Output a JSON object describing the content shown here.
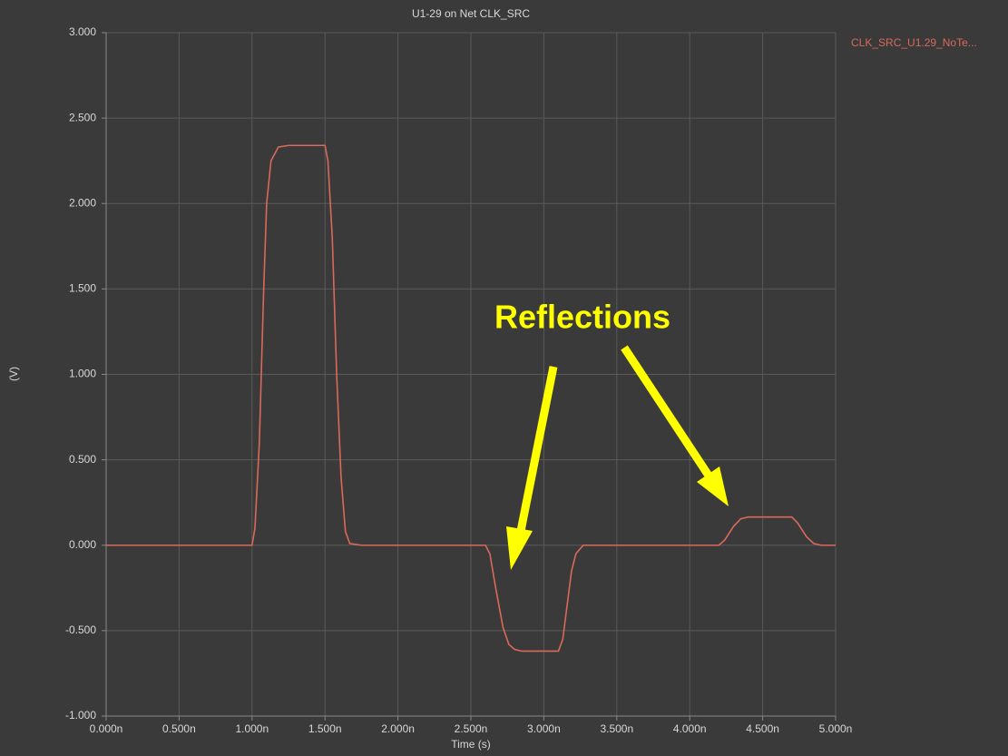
{
  "chart_data": {
    "type": "line",
    "title": "U1-29 on Net CLK_SRC",
    "x_label": "Time (s)",
    "y_label": "(V)",
    "xlim": [
      0,
      5
    ],
    "ylim": [
      -1,
      3
    ],
    "xticks": [
      {
        "value": 0,
        "label": "0.000n"
      },
      {
        "value": 0.5,
        "label": "0.500n"
      },
      {
        "value": 1,
        "label": "1.000n"
      },
      {
        "value": 1.5,
        "label": "1.500n"
      },
      {
        "value": 2,
        "label": "2.000n"
      },
      {
        "value": 2.5,
        "label": "2.500n"
      },
      {
        "value": 3,
        "label": "3.000n"
      },
      {
        "value": 3.5,
        "label": "3.500n"
      },
      {
        "value": 4,
        "label": "4.000n"
      },
      {
        "value": 4.5,
        "label": "4.500n"
      },
      {
        "value": 5,
        "label": "5.000n"
      }
    ],
    "yticks": [
      {
        "value": 3,
        "label": "3.000"
      },
      {
        "value": 2.5,
        "label": "2.500"
      },
      {
        "value": 2,
        "label": "2.000"
      },
      {
        "value": 1.5,
        "label": "1.500"
      },
      {
        "value": 1,
        "label": "1.000"
      },
      {
        "value": 0.5,
        "label": "0.500"
      },
      {
        "value": 0,
        "label": "0.000"
      },
      {
        "value": -0.5,
        "label": "-0.500"
      },
      {
        "value": -1,
        "label": "-1.000"
      }
    ],
    "grid": true,
    "legend": "right",
    "annotations": [
      "Reflections"
    ],
    "x": [
      0,
      1.0,
      1.02,
      1.05,
      1.08,
      1.1,
      1.13,
      1.18,
      1.25,
      1.5,
      1.52,
      1.55,
      1.58,
      1.61,
      1.64,
      1.67,
      1.75,
      2.6,
      2.63,
      2.67,
      2.72,
      2.76,
      2.8,
      2.85,
      3.1,
      3.13,
      3.16,
      3.19,
      3.22,
      3.27,
      4.2,
      4.24,
      4.3,
      4.35,
      4.4,
      4.7,
      4.74,
      4.8,
      4.85,
      4.9,
      5.0
    ],
    "series": [
      {
        "name": "CLK_SRC_U1.29_NoTe...",
        "color": "#d9695a",
        "values": [
          0,
          0,
          0.1,
          0.6,
          1.5,
          2.0,
          2.25,
          2.33,
          2.34,
          2.34,
          2.25,
          1.8,
          1.0,
          0.4,
          0.08,
          0.01,
          0,
          0,
          -0.05,
          -0.25,
          -0.48,
          -0.58,
          -0.61,
          -0.62,
          -0.62,
          -0.55,
          -0.35,
          -0.15,
          -0.05,
          0,
          0,
          0.03,
          0.11,
          0.155,
          0.165,
          0.165,
          0.13,
          0.05,
          0.01,
          0,
          0
        ]
      }
    ]
  }
}
